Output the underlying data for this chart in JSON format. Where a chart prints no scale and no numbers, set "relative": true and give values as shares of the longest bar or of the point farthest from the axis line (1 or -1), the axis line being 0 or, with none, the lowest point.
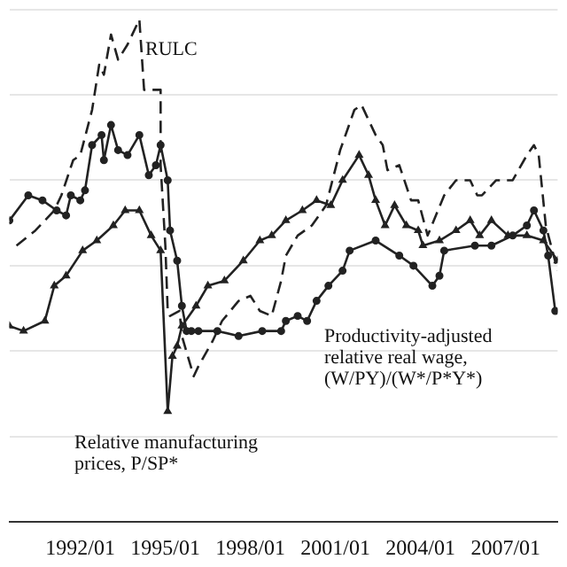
{
  "chart_data": {
    "type": "line",
    "relative": true,
    "grid": "y",
    "legend": false,
    "xlim": [
      "1989-07",
      "2008-11"
    ],
    "xticks": [
      {
        "value": "1992-01",
        "label": "1992/01"
      },
      {
        "value": "1995-01",
        "label": "1995/01"
      },
      {
        "value": "1998-01",
        "label": "1998/01"
      },
      {
        "value": "2001-01",
        "label": "2001/01"
      },
      {
        "value": "2004-01",
        "label": "2004/01"
      },
      {
        "value": "2007-01",
        "label": "2007/01"
      }
    ],
    "series": [
      {
        "name": "RULC",
        "color": "#222222",
        "line_style": "dashed",
        "marker": "none",
        "x": [
          "1989-10",
          "1990-06",
          "1991-02",
          "1991-05",
          "1991-10",
          "1992-01",
          "1992-06",
          "1992-09",
          "1992-11",
          "1993-02",
          "1993-05",
          "1993-09",
          "1994-02",
          "1994-04",
          "1994-11",
          "1994-11",
          "1995-01",
          "1995-02",
          "1995-03",
          "1995-07",
          "1995-08",
          "1996-01",
          "1996-03",
          "1996-09",
          "1997-01",
          "1997-08",
          "1998-01",
          "1998-05",
          "1998-10",
          "1999-02",
          "1999-04",
          "1999-09",
          "2000-03",
          "2000-09",
          "2001-03",
          "2001-09",
          "2001-12",
          "2002-06",
          "2002-09",
          "2002-11",
          "2003-04",
          "2003-09",
          "2003-12",
          "2004-04",
          "2004-11",
          "2005-04",
          "2005-10",
          "2006-01",
          "2006-03",
          "2006-09",
          "2007-04",
          "2007-10",
          "2008-01",
          "2008-03",
          "2008-06",
          "2008-11"
        ],
        "values": [
          0.55,
          0.58,
          0.62,
          0.65,
          0.72,
          0.73,
          0.82,
          0.91,
          0.89,
          0.97,
          0.92,
          0.95,
          1.0,
          0.86,
          0.86,
          0.71,
          0.55,
          0.42,
          0.41,
          0.42,
          0.37,
          0.29,
          0.31,
          0.36,
          0.4,
          0.44,
          0.45,
          0.42,
          0.41,
          0.48,
          0.53,
          0.57,
          0.59,
          0.63,
          0.74,
          0.82,
          0.83,
          0.77,
          0.75,
          0.7,
          0.71,
          0.64,
          0.64,
          0.57,
          0.65,
          0.68,
          0.68,
          0.65,
          0.65,
          0.68,
          0.68,
          0.73,
          0.75,
          0.73,
          0.59,
          0.5
        ]
      },
      {
        "name": "Productivity-adjusted relative real wage, (W/PY)/(W*/P*Y*)",
        "color": "#222222",
        "line_style": "solid",
        "marker": "circle",
        "x": [
          "1989-07",
          "1990-03",
          "1990-09",
          "1991-03",
          "1991-07",
          "1991-09",
          "1992-01",
          "1992-03",
          "1992-06",
          "1992-10",
          "1992-11",
          "1993-02",
          "1993-05",
          "1993-09",
          "1994-02",
          "1994-06",
          "1994-09",
          "1994-11",
          "1995-02",
          "1995-03",
          "1995-06",
          "1995-08",
          "1995-10",
          "1995-12",
          "1996-03",
          "1996-11",
          "1997-08",
          "1998-06",
          "1999-02",
          "1999-04",
          "1999-09",
          "2000-01",
          "2000-05",
          "2000-10",
          "2001-04",
          "2001-07",
          "2002-06",
          "2003-04",
          "2003-10",
          "2004-06",
          "2004-09",
          "2004-11",
          "2005-12",
          "2006-07",
          "2007-04",
          "2007-10",
          "2008-01",
          "2008-05",
          "2008-07",
          "2008-10"
        ],
        "values": [
          0.6,
          0.65,
          0.64,
          0.62,
          0.61,
          0.65,
          0.64,
          0.66,
          0.75,
          0.77,
          0.72,
          0.79,
          0.74,
          0.73,
          0.77,
          0.69,
          0.71,
          0.75,
          0.68,
          0.58,
          0.52,
          0.43,
          0.38,
          0.38,
          0.38,
          0.38,
          0.37,
          0.38,
          0.38,
          0.4,
          0.41,
          0.4,
          0.44,
          0.47,
          0.5,
          0.54,
          0.56,
          0.53,
          0.51,
          0.47,
          0.49,
          0.54,
          0.55,
          0.55,
          0.57,
          0.59,
          0.62,
          0.58,
          0.53,
          0.42
        ]
      },
      {
        "name": "Relative manufacturing prices, P/SP*",
        "color": "#222222",
        "line_style": "solid",
        "marker": "triangle",
        "x": [
          "1989-07",
          "1990-01",
          "1990-10",
          "1991-02",
          "1991-07",
          "1992-02",
          "1992-08",
          "1993-03",
          "1993-08",
          "1994-02",
          "1994-07",
          "1994-11",
          "1995-02",
          "1995-04",
          "1995-06",
          "1995-08",
          "1996-02",
          "1996-07",
          "1997-02",
          "1997-10",
          "1998-05",
          "1998-10",
          "1999-04",
          "1999-11",
          "2000-05",
          "2000-11",
          "2001-04",
          "2001-11",
          "2002-03",
          "2002-06",
          "2002-10",
          "2003-02",
          "2003-07",
          "2003-12",
          "2004-02",
          "2004-09",
          "2005-04",
          "2005-10",
          "2006-02",
          "2006-07",
          "2007-02",
          "2007-10",
          "2008-05",
          "2008-11"
        ],
        "values": [
          0.39,
          0.38,
          0.4,
          0.47,
          0.49,
          0.54,
          0.56,
          0.59,
          0.62,
          0.62,
          0.57,
          0.54,
          0.22,
          0.33,
          0.35,
          0.39,
          0.43,
          0.47,
          0.48,
          0.52,
          0.56,
          0.57,
          0.6,
          0.62,
          0.64,
          0.63,
          0.68,
          0.73,
          0.69,
          0.64,
          0.59,
          0.63,
          0.59,
          0.58,
          0.55,
          0.56,
          0.58,
          0.6,
          0.57,
          0.6,
          0.57,
          0.57,
          0.56,
          0.52
        ]
      }
    ]
  }
}
